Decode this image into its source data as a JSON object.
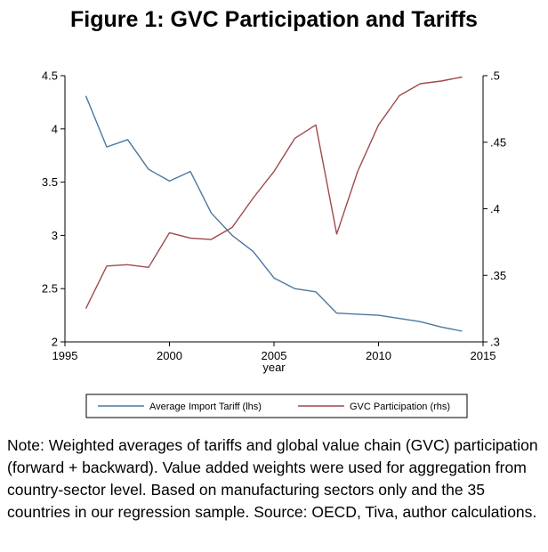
{
  "figure": {
    "title": "Figure 1: GVC Participation and Tariffs",
    "note": "Note: Weighted averages of tariffs and global value chain (GVC) participation (forward + backward). Value added weights were used for aggregation from country-sector level. Based on manufacturing sectors only and the 35 countries in our regression sample. Source: OECD, Tiva, author calculations."
  },
  "chart_data": {
    "type": "line",
    "xlabel": "year",
    "xlim": [
      1995,
      2015
    ],
    "x_ticks": [
      "1995",
      "2000",
      "2005",
      "2010",
      "2015"
    ],
    "y_left": {
      "lim": [
        2,
        4.5
      ],
      "ticks": [
        "2",
        "2.5",
        "3",
        "3.5",
        "4",
        "4.5"
      ]
    },
    "y_right": {
      "lim": [
        0.3,
        0.5
      ],
      "ticks": [
        ".3",
        ".35",
        ".4",
        ".45",
        ".5"
      ]
    },
    "grid": false,
    "legend_position": "bottom",
    "series": [
      {
        "name": "Average Import Tariff (lhs)",
        "axis": "left",
        "color": "#4a78a0",
        "x": [
          1996,
          1997,
          1998,
          1999,
          2000,
          2001,
          2002,
          2003,
          2004,
          2005,
          2006,
          2007,
          2008,
          2009,
          2010,
          2011,
          2012,
          2013,
          2014
        ],
        "y": [
          4.31,
          3.83,
          3.9,
          3.62,
          3.51,
          3.6,
          3.21,
          3.0,
          2.85,
          2.6,
          2.5,
          2.47,
          2.27,
          2.26,
          2.25,
          2.22,
          2.19,
          2.14,
          2.1
        ]
      },
      {
        "name": "GVC Participation (rhs)",
        "axis": "right",
        "color": "#a0494b",
        "x": [
          1996,
          1997,
          1998,
          1999,
          2000,
          2001,
          2002,
          2003,
          2004,
          2005,
          2006,
          2007,
          2008,
          2009,
          2010,
          2011,
          2012,
          2013,
          2014
        ],
        "y": [
          0.325,
          0.357,
          0.358,
          0.356,
          0.382,
          0.378,
          0.377,
          0.386,
          0.408,
          0.428,
          0.453,
          0.463,
          0.381,
          0.428,
          0.463,
          0.485,
          0.494,
          0.496,
          0.499
        ]
      }
    ]
  }
}
